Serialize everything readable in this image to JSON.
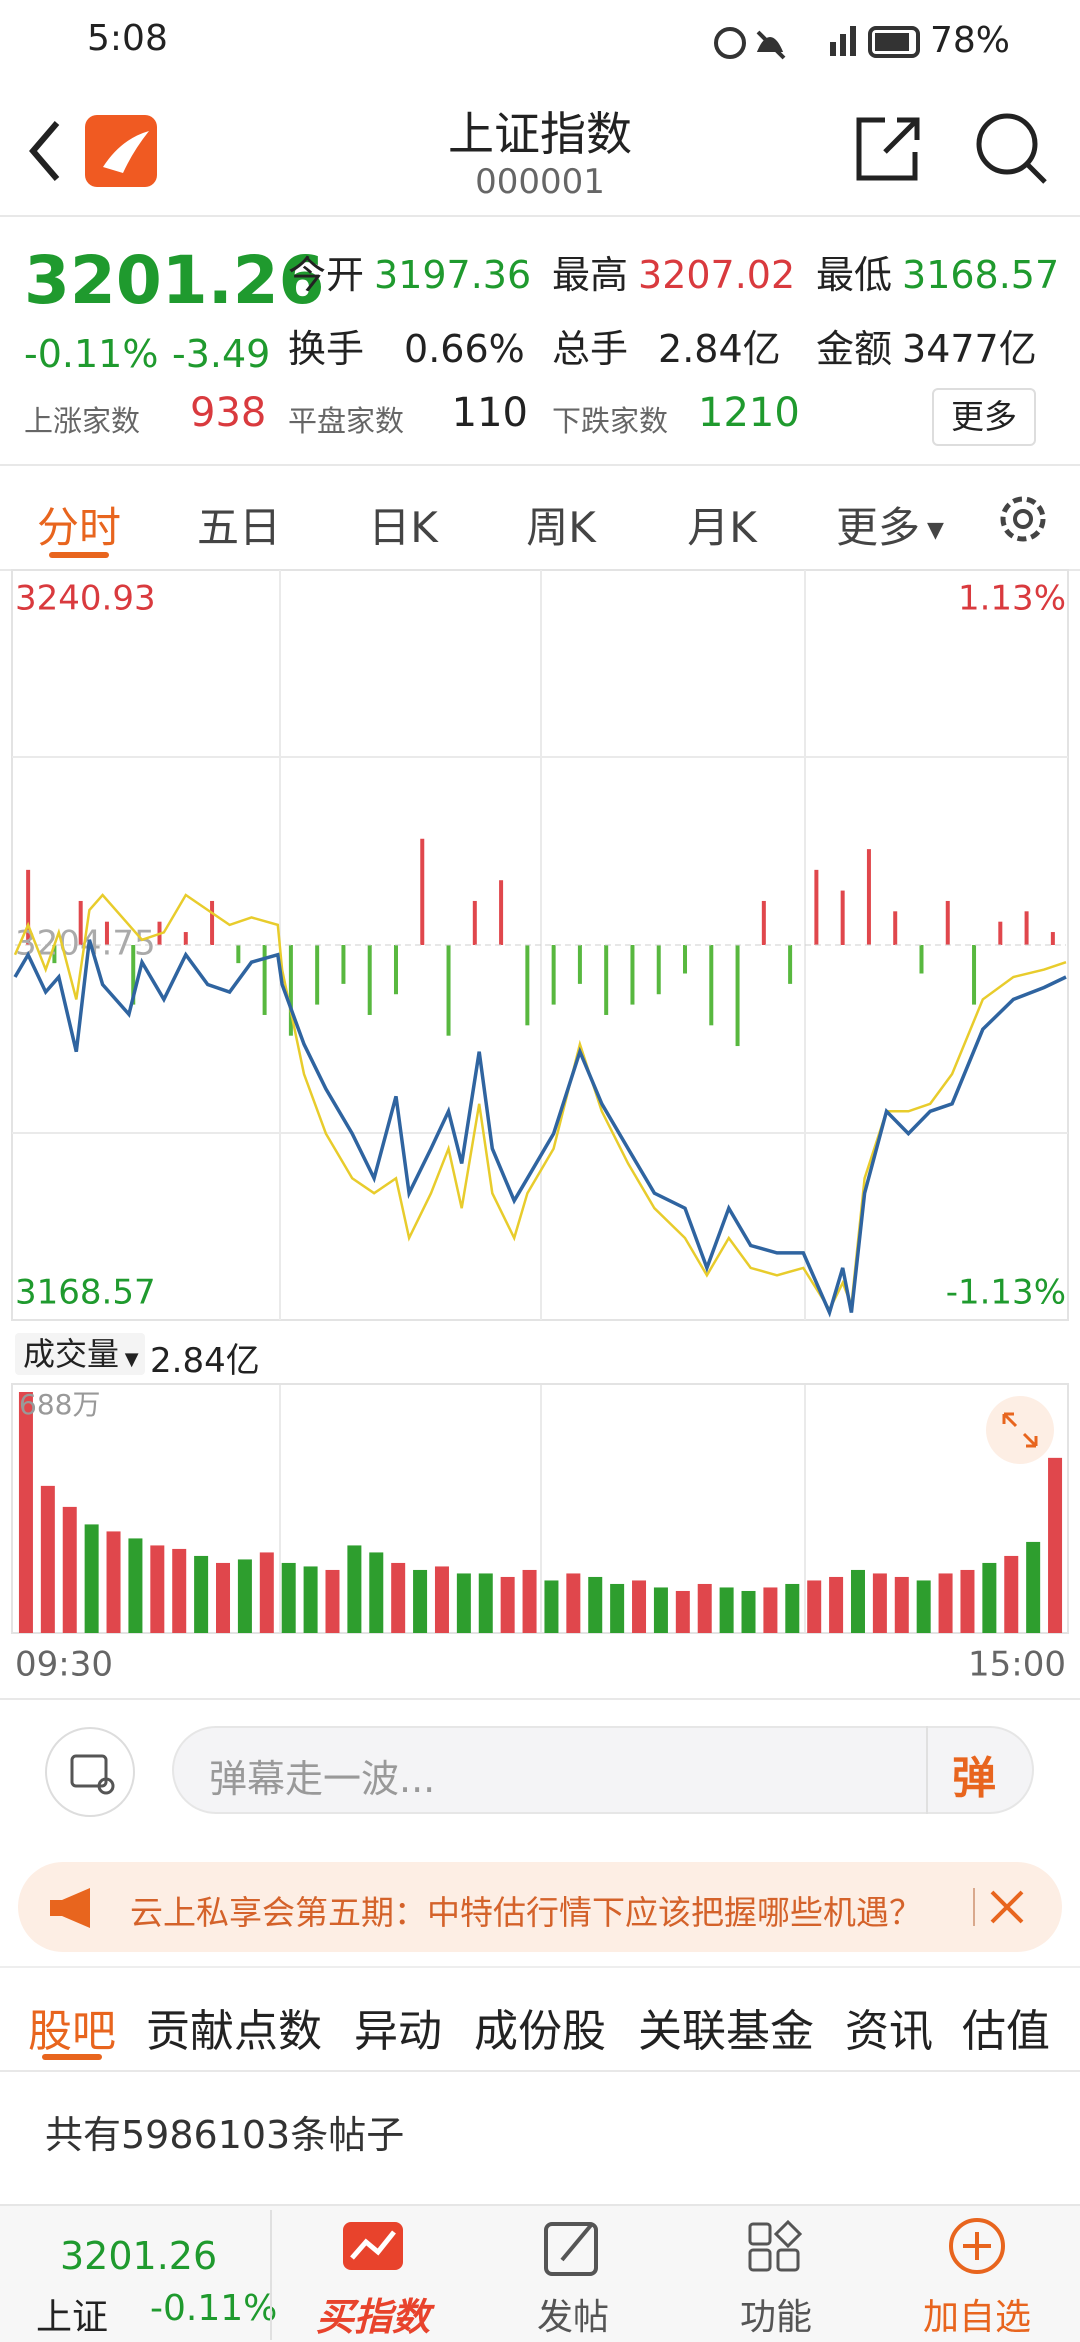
{
  "status": {
    "time": "5:08",
    "battery": "78%"
  },
  "header": {
    "title": "上证指数",
    "code": "000001"
  },
  "quote": {
    "price": "3201.26",
    "change_pct": "-0.11%",
    "change": "-3.49",
    "fields": [
      {
        "label": "今开",
        "value": "3197.36"
      },
      {
        "label": "最高",
        "value": "3207.02"
      },
      {
        "label": "最低",
        "value": "3168.57"
      },
      {
        "label": "换手",
        "value": "0.66%"
      },
      {
        "label": "总手",
        "value": "2.84亿"
      },
      {
        "label": "金额",
        "value": "3477亿"
      }
    ],
    "breadth": [
      {
        "label": "上涨家数",
        "value": "938"
      },
      {
        "label": "平盘家数",
        "value": "110"
      },
      {
        "label": "下跌家数",
        "value": "1210"
      }
    ],
    "more": "更多"
  },
  "tabs": [
    "分时",
    "五日",
    "日K",
    "周K",
    "月K",
    "更多"
  ],
  "chart_data": [
    {
      "type": "line",
      "ylim": [
        3168.57,
        3240.93
      ],
      "yticks": [
        3240.93,
        3204.75,
        3168.57
      ],
      "y2lim": [
        -1.13,
        1.13
      ],
      "y2ticks": [
        {
          "value": 1.13,
          "label": "1.13%"
        },
        {
          "value": -1.13,
          "label": "-1.13%"
        }
      ],
      "xlim": [
        0,
        240
      ],
      "x": [
        0,
        3,
        7,
        10,
        14,
        17,
        20,
        26,
        29,
        34,
        39,
        44,
        49,
        54,
        60,
        61,
        66,
        71,
        77,
        82,
        87,
        90,
        95,
        99,
        102,
        106,
        109,
        114,
        117,
        123,
        129,
        134,
        140,
        146,
        153,
        158,
        163,
        168,
        174,
        180,
        186,
        189,
        191,
        194,
        199,
        204,
        209,
        214,
        221,
        228,
        235,
        240
      ],
      "series": [
        {
          "color": "#2f64a0",
          "values": [
            3201.66,
            3203.81,
            3200.22,
            3201.66,
            3194.46,
            3205.25,
            3200.94,
            3198.06,
            3203.09,
            3199.5,
            3203.81,
            3200.94,
            3200.22,
            3203.09,
            3203.81,
            3200.94,
            3195.18,
            3190.87,
            3186.55,
            3182.24,
            3190.15,
            3180.8,
            3185.11,
            3188.71,
            3183.67,
            3194.46,
            3185.11,
            3180.08,
            3182.24,
            3186.55,
            3194.46,
            3189.43,
            3185.11,
            3180.8,
            3179.36,
            3173.6,
            3179.36,
            3175.76,
            3175.04,
            3175.04,
            3169.29,
            3173.6,
            3169.29,
            3180.8,
            3188.71,
            3186.55,
            3188.71,
            3189.43,
            3196.62,
            3199.5,
            3200.65,
            3201.66
          ]
        },
        {
          "color": "#e8cc2c",
          "values": [
            3203.81,
            3206.69,
            3202.38,
            3205.97,
            3199.5,
            3208.13,
            3209.57,
            3206.69,
            3205.25,
            3205.97,
            3209.57,
            3208.13,
            3206.69,
            3207.41,
            3206.69,
            3202.38,
            3192.3,
            3186.55,
            3182.24,
            3180.8,
            3182.24,
            3176.48,
            3180.8,
            3185.11,
            3179.36,
            3189.43,
            3180.8,
            3176.48,
            3180.8,
            3185.11,
            3195.18,
            3188.71,
            3183.67,
            3179.36,
            3176.48,
            3172.88,
            3176.48,
            3173.6,
            3172.88,
            3173.6,
            3169.57,
            3172.16,
            3170.01,
            3182.24,
            3188.71,
            3188.71,
            3189.43,
            3192.3,
            3199.5,
            3201.66,
            3202.38,
            3203.09
          ]
        }
      ],
      "bars": {
        "up_color": "#e0474c",
        "down_color": "#58b83f",
        "x": [
          3,
          9,
          15,
          21,
          27,
          33,
          39,
          45,
          51,
          57,
          63,
          69,
          75,
          81,
          87,
          93,
          99,
          105,
          111,
          117,
          123,
          129,
          135,
          141,
          147,
          153,
          159,
          165,
          171,
          177,
          183,
          189,
          195,
          201,
          207,
          213,
          219,
          225,
          231,
          237
        ],
        "values": [
          3212,
          3203,
          3209,
          3207,
          3199,
          3207,
          3206,
          3209,
          3203,
          3198,
          3196,
          3199,
          3201,
          3198,
          3200,
          3215,
          3196,
          3209,
          3211,
          3197,
          3199,
          3201,
          3198,
          3199,
          3200,
          3202,
          3197,
          3195,
          3209,
          3201,
          3212,
          3210,
          3214,
          3208,
          3202,
          3209,
          3199,
          3207,
          3208,
          3206
        ]
      }
    },
    {
      "type": "bar",
      "ylim": [
        0,
        688
      ],
      "yticks": [
        {
          "value": 688,
          "label": "688万"
        }
      ],
      "xlim": [
        0,
        240
      ],
      "xticks": [
        {
          "value": 0,
          "label": "09:30"
        },
        {
          "value": 240,
          "label": "15:00"
        }
      ],
      "x": [
        2.5,
        7.5,
        12.5,
        17.5,
        22.5,
        27.5,
        32.5,
        37.5,
        42.5,
        47.5,
        52.5,
        57.5,
        62.5,
        67.5,
        72.5,
        77.5,
        82.5,
        87.5,
        92.5,
        97.5,
        102.5,
        107.5,
        112.5,
        117.5,
        122.5,
        127.5,
        132.5,
        137.5,
        142.5,
        147.5,
        152.5,
        157.5,
        162.5,
        167.5,
        172.5,
        177.5,
        182.5,
        187.5,
        192.5,
        197.5,
        202.5,
        207.5,
        212.5,
        217.5,
        222.5,
        227.5,
        232.5,
        237.5
      ],
      "values": [
        688,
        420,
        360,
        310,
        290,
        270,
        250,
        240,
        220,
        200,
        210,
        230,
        200,
        190,
        180,
        250,
        230,
        200,
        180,
        190,
        170,
        170,
        160,
        180,
        150,
        170,
        160,
        140,
        150,
        130,
        120,
        140,
        130,
        120,
        130,
        140,
        150,
        160,
        180,
        170,
        160,
        150,
        170,
        180,
        200,
        220,
        260,
        500
      ],
      "colors": [
        "#e0474c",
        "#e0474c",
        "#e0474c",
        "#2e9e2e",
        "#e0474c",
        "#2e9e2e",
        "#e0474c",
        "#e0474c",
        "#2e9e2e",
        "#e0474c",
        "#2e9e2e",
        "#e0474c",
        "#2e9e2e",
        "#2e9e2e",
        "#e0474c",
        "#2e9e2e",
        "#2e9e2e",
        "#e0474c",
        "#2e9e2e",
        "#e0474c",
        "#2e9e2e",
        "#2e9e2e",
        "#e0474c",
        "#e0474c",
        "#2e9e2e",
        "#e0474c",
        "#2e9e2e",
        "#2e9e2e",
        "#e0474c",
        "#2e9e2e",
        "#e0474c",
        "#e0474c",
        "#2e9e2e",
        "#2e9e2e",
        "#e0474c",
        "#2e9e2e",
        "#e0474c",
        "#e0474c",
        "#2e9e2e",
        "#e0474c",
        "#e0474c",
        "#2e9e2e",
        "#e0474c",
        "#e0474c",
        "#2e9e2e",
        "#e0474c",
        "#2e9e2e",
        "#e0474c"
      ]
    }
  ],
  "volume_header": {
    "label": "成交量",
    "value": "2.84亿"
  },
  "danmaku": {
    "placeholder": "弹幕走一波...",
    "button": "弹"
  },
  "banner": "云上私享会第五期：中特估行情下应该把握哪些机遇？",
  "sections": [
    "股吧",
    "贡献点数",
    "异动",
    "成份股",
    "关联基金",
    "资讯",
    "估值"
  ],
  "posts": "共有5986103条帖子",
  "bottom_bar": {
    "price": "3201.26",
    "name": "上证",
    "change_pct": "-0.11%",
    "items": [
      "买指数",
      "发帖",
      "功能",
      "加自选"
    ]
  }
}
